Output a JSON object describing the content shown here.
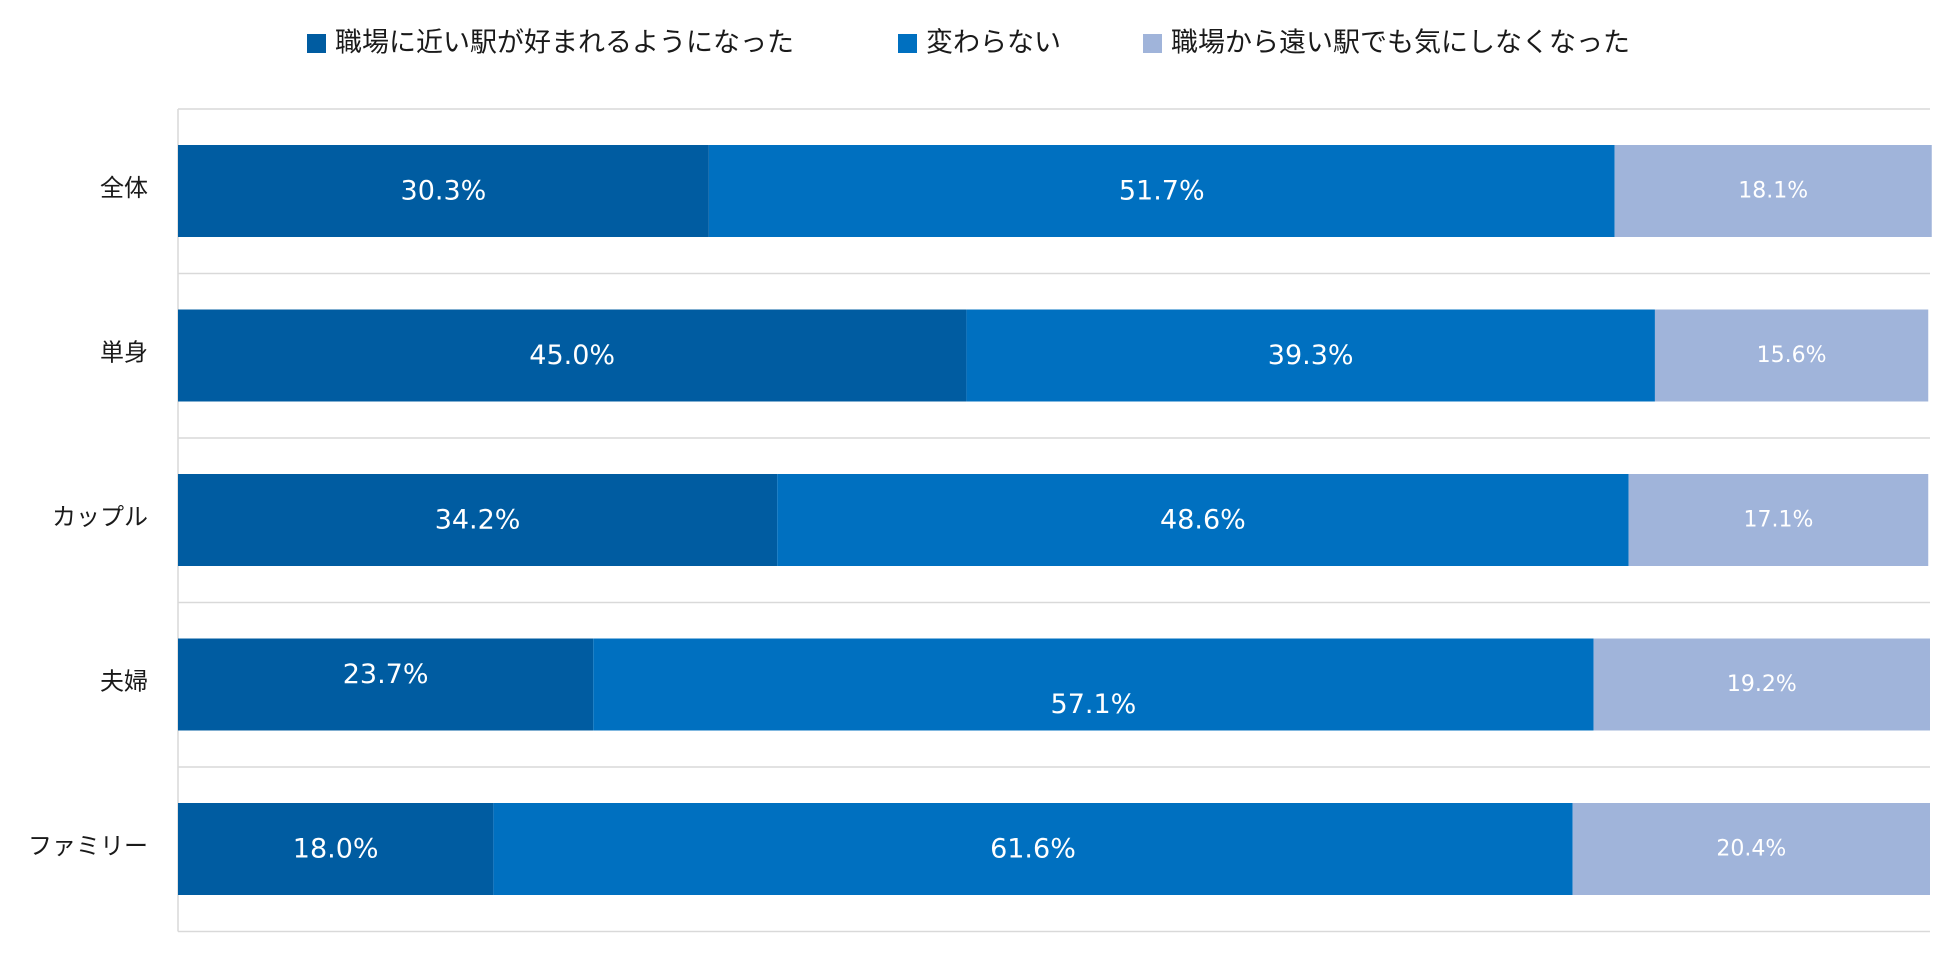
{
  "chart_data": {
    "type": "bar",
    "orientation": "horizontal",
    "stacked": true,
    "normalized_percent": true,
    "categories": [
      "全体",
      "単身",
      "カップル",
      "夫婦",
      "ファミリー"
    ],
    "series": [
      {
        "name": "職場に近い駅が好まれるようになった",
        "color": "#005ca1",
        "values": [
          30.3,
          45.0,
          34.2,
          23.7,
          18.0
        ],
        "labels": [
          "30.3%",
          "45.0%",
          "34.2%",
          "23.7%",
          "18.0%"
        ]
      },
      {
        "name": "変わらない",
        "color": "#0070c0",
        "values": [
          51.7,
          39.3,
          48.6,
          57.1,
          61.6
        ],
        "labels": [
          "51.7%",
          "39.3%",
          "48.6%",
          "57.1%",
          "61.6%"
        ]
      },
      {
        "name": "職場から遠い駅でも気にしなくなった",
        "color": "#a0b4da",
        "values": [
          18.1,
          15.6,
          17.1,
          19.2,
          20.4
        ],
        "labels": [
          "18.1%",
          "15.6%",
          "17.1%",
          "19.2%",
          "20.4%"
        ]
      }
    ],
    "legend_position": "top",
    "grid": true,
    "xlim": [
      0,
      100
    ],
    "gridline_color": "#d9d9d9"
  }
}
